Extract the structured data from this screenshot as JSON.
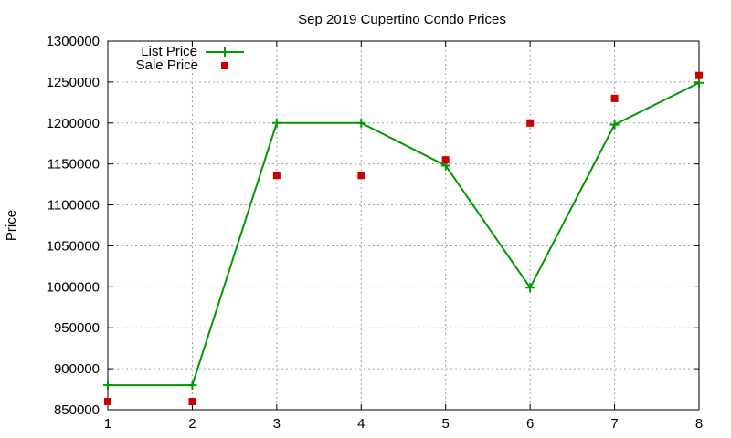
{
  "chart_data": {
    "type": "line",
    "title": "Sep 2019 Cupertino Condo Prices",
    "xlabel": "",
    "ylabel": "Price",
    "x": [
      1,
      2,
      3,
      4,
      5,
      6,
      7,
      8
    ],
    "xlim": [
      1,
      8
    ],
    "ylim": [
      850000,
      1300000
    ],
    "xticks": [
      "1",
      "2",
      "3",
      "4",
      "5",
      "6",
      "7",
      "8"
    ],
    "yticks": [
      "850000",
      "900000",
      "950000",
      "1000000",
      "1050000",
      "1100000",
      "1150000",
      "1200000",
      "1250000",
      "1300000"
    ],
    "grid": true,
    "legend_position": "top-left",
    "series": [
      {
        "name": "List Price",
        "style": "linespoints",
        "marker": "plus",
        "color": "#009900",
        "values": [
          880000,
          880000,
          1200000,
          1200000,
          1148000,
          999000,
          1198000,
          1249000
        ]
      },
      {
        "name": "Sale Price",
        "style": "points",
        "marker": "square",
        "color": "#cc0000",
        "values": [
          860000,
          860000,
          1136000,
          1136000,
          1155000,
          1200000,
          1230000,
          1258000
        ]
      }
    ]
  }
}
